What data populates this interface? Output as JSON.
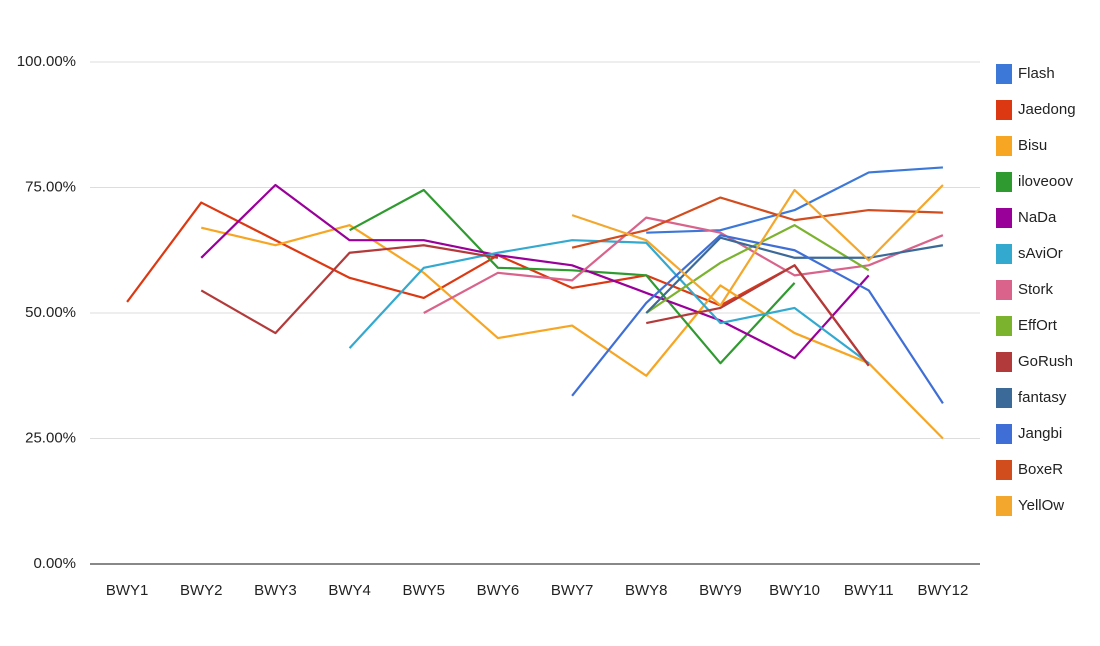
{
  "chart_data": {
    "type": "line",
    "categories": [
      "BWY1",
      "BWY2",
      "BWY3",
      "BWY4",
      "BWY5",
      "BWY6",
      "BWY7",
      "BWY8",
      "BWY9",
      "BWY10",
      "BWY11",
      "BWY12"
    ],
    "ylim": [
      0,
      100
    ],
    "yticks": [
      {
        "value": 0,
        "label": "0.00%"
      },
      {
        "value": 25,
        "label": "25.00%"
      },
      {
        "value": 50,
        "label": "50.00%"
      },
      {
        "value": 75,
        "label": "75.00%"
      },
      {
        "value": 100,
        "label": "100.00%"
      }
    ],
    "grid": true,
    "legend": "right",
    "series": [
      {
        "name": "Flash",
        "color": "#3c78d8",
        "values": [
          null,
          null,
          null,
          null,
          null,
          null,
          null,
          66,
          66.5,
          70.5,
          78,
          79
        ]
      },
      {
        "name": "Jaedong",
        "color": "#dc3912",
        "values": [
          52.2,
          72,
          64.5,
          57,
          53,
          61.5,
          55,
          57.5,
          51.5,
          59.5,
          39.5,
          null
        ]
      },
      {
        "name": "Bisu",
        "color": "#f6a623",
        "values": [
          null,
          67,
          63.5,
          67.5,
          58,
          45,
          47.5,
          37.5,
          55.5,
          46,
          40,
          25
        ]
      },
      {
        "name": "iloveoov",
        "color": "#2f9a2f",
        "values": [
          null,
          null,
          null,
          66.5,
          74.5,
          59,
          58.5,
          57.5,
          40,
          56,
          null,
          null
        ]
      },
      {
        "name": "NaDa",
        "color": "#990099",
        "values": [
          null,
          61,
          75.5,
          64.5,
          64.5,
          61.5,
          59.5,
          54,
          48.5,
          41,
          57.5,
          null
        ]
      },
      {
        "name": "sAviOr",
        "color": "#33a9d0",
        "values": [
          null,
          null,
          null,
          43,
          59,
          62,
          64.5,
          64,
          48,
          51,
          40,
          null
        ]
      },
      {
        "name": "Stork",
        "color": "#d9638b",
        "values": [
          null,
          null,
          null,
          null,
          50,
          58,
          56.5,
          69,
          66,
          57.5,
          59.5,
          65.5
        ]
      },
      {
        "name": "EffOrt",
        "color": "#7bb32e",
        "values": [
          null,
          null,
          null,
          null,
          null,
          null,
          null,
          50,
          60,
          67.5,
          58.5,
          null
        ]
      },
      {
        "name": "GoRush",
        "color": "#b33a3a",
        "values": [
          null,
          54.5,
          46,
          62,
          63.5,
          61,
          null,
          48,
          51,
          59.5,
          39.5,
          null
        ]
      },
      {
        "name": "fantasy",
        "color": "#3b6a98",
        "values": [
          null,
          null,
          null,
          null,
          null,
          null,
          null,
          50,
          65,
          61,
          61,
          63.5
        ]
      },
      {
        "name": "Jangbi",
        "color": "#3f6fd6",
        "values": [
          null,
          null,
          null,
          null,
          null,
          null,
          33.5,
          52,
          65.5,
          62.5,
          54.5,
          32
        ]
      },
      {
        "name": "BoxeR",
        "color": "#d24d1e",
        "values": [
          null,
          null,
          null,
          null,
          null,
          null,
          63,
          66.5,
          73,
          68.5,
          70.5,
          70
        ]
      },
      {
        "name": "YellOw",
        "color": "#f3a72c",
        "values": [
          null,
          null,
          null,
          null,
          null,
          null,
          69.5,
          64.5,
          51.5,
          74.5,
          60.5,
          75.5
        ]
      }
    ]
  }
}
